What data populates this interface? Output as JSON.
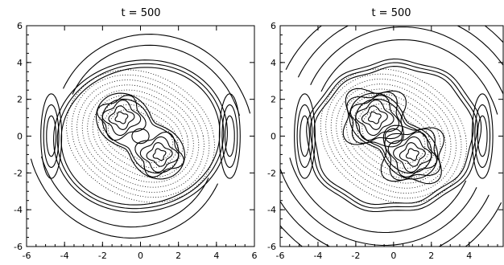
{
  "panels": [
    {
      "id": "left",
      "title": "t = 500",
      "x_ticks": [
        "-6",
        "-4",
        "-2",
        "0",
        "2",
        "4",
        "6"
      ],
      "y_ticks": [
        "-6",
        "-4",
        "-2",
        "0",
        "2",
        "4",
        "6"
      ]
    },
    {
      "id": "right",
      "title": "t = 500",
      "x_ticks": [
        "-6",
        "-4",
        "-2",
        "0",
        "2",
        "4"
      ],
      "y_ticks": [
        "-6",
        "-4",
        "-2",
        "0",
        "2",
        "4",
        "6"
      ]
    }
  ],
  "style": {
    "line_color": "#000000",
    "background": "#ffffff"
  }
}
